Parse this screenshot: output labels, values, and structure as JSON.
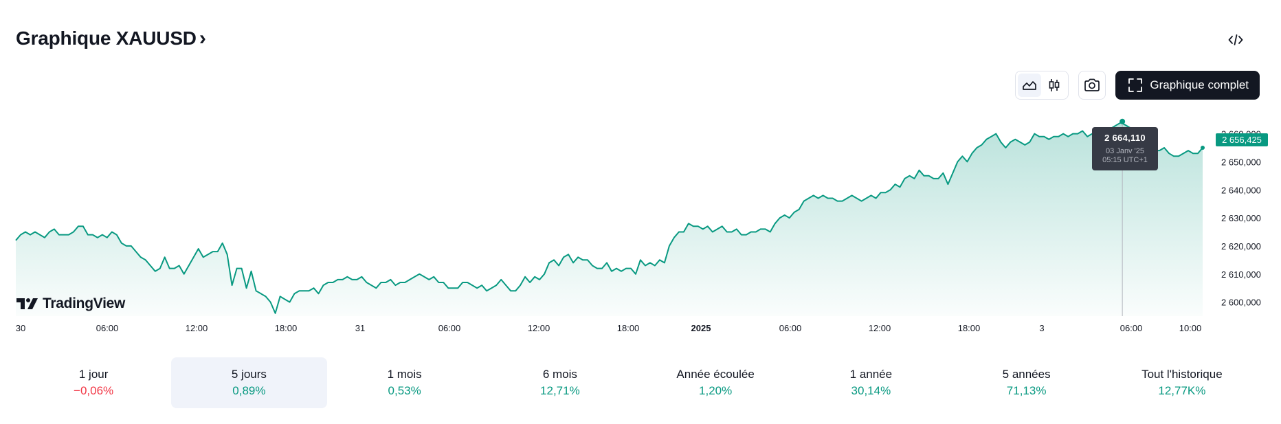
{
  "header": {
    "title": "Graphique XAUUSD",
    "chevron": "›"
  },
  "toolbar": {
    "embed_icon": "code-embed-icon",
    "area_icon": "area-chart-icon",
    "candles_icon": "candlestick-icon",
    "snapshot_icon": "camera-icon",
    "full_chart_label": "Graphique complet",
    "full_chart_icon": "fullscreen-icon"
  },
  "colors": {
    "line": "#089981",
    "negative": "#f23645",
    "text": "#131722",
    "muted": "#787b86"
  },
  "watermark": {
    "text": "TradingView"
  },
  "tooltip": {
    "price": "2 664,110",
    "date": "03 Janv '25",
    "time": "05:15 UTC+1"
  },
  "chart_data": {
    "type": "area",
    "title": "",
    "xlabel": "",
    "ylabel": "",
    "x_ticks": [
      "30",
      "06:00",
      "12:00",
      "18:00",
      "31",
      "06:00",
      "12:00",
      "18:00",
      "2025",
      "06:00",
      "12:00",
      "18:00",
      "3",
      "06:00",
      "10:00"
    ],
    "y_ticks": [
      "2 600,000",
      "2 610,000",
      "2 620,000",
      "2 630,000",
      "2 640,000",
      "2 650,000",
      "2 660,000"
    ],
    "ylim": [
      2595,
      2667
    ],
    "current_price_label": "2 656,425",
    "series": [
      {
        "values": [
          2622,
          2624,
          2625,
          2624,
          2625,
          2624,
          2623,
          2625,
          2626,
          2624,
          2624,
          2624,
          2625,
          2627,
          2627,
          2624,
          2624,
          2623,
          2624,
          2623,
          2625,
          2624,
          2621,
          2620,
          2620,
          2618,
          2616,
          2615,
          2613,
          2611,
          2612,
          2616,
          2612,
          2612,
          2613,
          2610,
          2613,
          2616,
          2619,
          2616,
          2617,
          2618,
          2618,
          2621,
          2617,
          2606,
          2612,
          2612,
          2605,
          2611,
          2604,
          2603,
          2602,
          2600,
          2596,
          2602,
          2601,
          2600,
          2603,
          2604,
          2604,
          2604,
          2605,
          2603,
          2606,
          2607,
          2607,
          2608,
          2608,
          2609,
          2608,
          2608,
          2609,
          2607,
          2606,
          2605,
          2607,
          2607,
          2608,
          2606,
          2607,
          2607,
          2608,
          2609,
          2610,
          2609,
          2608,
          2609,
          2607,
          2607,
          2605,
          2605,
          2605,
          2607,
          2607,
          2606,
          2605,
          2606,
          2604,
          2605,
          2606,
          2608,
          2606,
          2604,
          2604,
          2606,
          2609,
          2607,
          2609,
          2608,
          2610,
          2614,
          2615,
          2613,
          2616,
          2617,
          2614,
          2616,
          2615,
          2615,
          2613,
          2612,
          2612,
          2614,
          2611,
          2612,
          2611,
          2612,
          2612,
          2610,
          2615,
          2613,
          2614,
          2613,
          2615,
          2614,
          2620,
          2623,
          2625,
          2625,
          2628,
          2627,
          2627,
          2626,
          2627,
          2625,
          2626,
          2627,
          2625,
          2625,
          2626,
          2624,
          2624,
          2625,
          2625,
          2626,
          2626,
          2625,
          2628,
          2630,
          2631,
          2630,
          2632,
          2633,
          2636,
          2637,
          2638,
          2637,
          2638,
          2637,
          2637,
          2636,
          2636,
          2637,
          2638,
          2637,
          2636,
          2637,
          2638,
          2637,
          2639,
          2639,
          2640,
          2642,
          2641,
          2644,
          2645,
          2644,
          2647,
          2645,
          2645,
          2644,
          2644,
          2646,
          2642,
          2646,
          2650,
          2652,
          2650,
          2653,
          2655,
          2656,
          2658,
          2659,
          2660,
          2657,
          2655,
          2657,
          2658,
          2657,
          2656,
          2657,
          2660,
          2659,
          2659,
          2658,
          2659,
          2659,
          2660,
          2659,
          2660,
          2660,
          2661,
          2659,
          2660,
          2659,
          2658,
          2660,
          2662,
          2663,
          2664,
          2663,
          2662,
          2660,
          2660,
          2658,
          2656,
          2654,
          2654,
          2655,
          2653,
          2652,
          2652,
          2653,
          2654,
          2653,
          2653,
          2655
        ]
      }
    ],
    "tooltip_point": {
      "x": "03 Janv '25 05:15 UTC+1",
      "y": 2664.11
    }
  },
  "periods": [
    {
      "label": "1 jour",
      "change": "−0,06%",
      "dir": "neg",
      "active": false
    },
    {
      "label": "5 jours",
      "change": "0,89%",
      "dir": "pos",
      "active": true
    },
    {
      "label": "1 mois",
      "change": "0,53%",
      "dir": "pos",
      "active": false
    },
    {
      "label": "6 mois",
      "change": "12,71%",
      "dir": "pos",
      "active": false
    },
    {
      "label": "Année écoulée",
      "change": "1,20%",
      "dir": "pos",
      "active": false
    },
    {
      "label": "1 année",
      "change": "30,14%",
      "dir": "pos",
      "active": false
    },
    {
      "label": "5 années",
      "change": "71,13%",
      "dir": "pos",
      "active": false
    },
    {
      "label": "Tout l'historique",
      "change": "12,77K%",
      "dir": "pos",
      "active": false
    }
  ]
}
